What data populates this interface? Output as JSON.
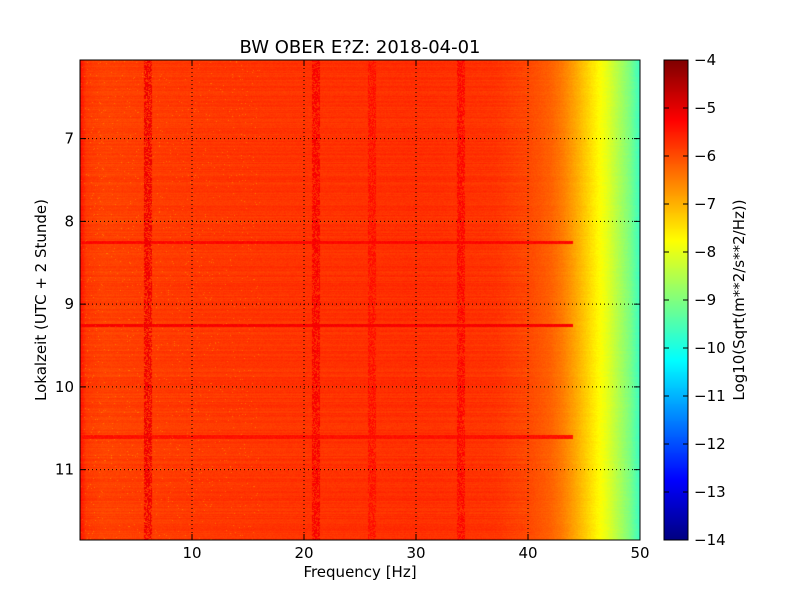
{
  "chart_data": {
    "type": "heatmap",
    "title": "BW OBER E?Z: 2018-04-01",
    "xlabel": "Frequency [Hz]",
    "ylabel": "Lokalzeit (UTC + 2 Stunde)",
    "colorbar_label": "Log10(Sqrt(m**2/s**2/Hz))",
    "xlim": [
      0,
      50
    ],
    "ylim": [
      6.05,
      11.85
    ],
    "y_inverted": true,
    "x_ticks": [
      10,
      20,
      30,
      40,
      50
    ],
    "y_ticks": [
      7,
      8,
      9,
      10,
      11
    ],
    "colorbar_range": [
      -14,
      -4
    ],
    "colorbar_ticks": [
      -4,
      -5,
      -6,
      -7,
      -8,
      -9,
      -10,
      -11,
      -12,
      -13,
      -14
    ],
    "colormap": "jet",
    "grid": true,
    "frequency_profile": {
      "frequency_hz": [
        0,
        0.5,
        2,
        5,
        10,
        20,
        30,
        37,
        40,
        42,
        43,
        44,
        45,
        46,
        47,
        48,
        49,
        50
      ],
      "log10_amplitude": [
        -5.4,
        -5.8,
        -5.9,
        -5.85,
        -5.8,
        -5.75,
        -5.7,
        -5.75,
        -5.95,
        -6.2,
        -6.45,
        -6.8,
        -7.2,
        -7.6,
        -8.0,
        -8.5,
        -9.0,
        -9.7
      ]
    },
    "line_features": [
      {
        "kind": "frequency_line",
        "frequency_hz": 6.0,
        "log10_amplitude": -5.1
      },
      {
        "kind": "frequency_line",
        "frequency_hz": 21.0,
        "log10_amplitude": -5.2
      },
      {
        "kind": "frequency_line",
        "frequency_hz": 26.0,
        "log10_amplitude": -5.4
      },
      {
        "kind": "frequency_line",
        "frequency_hz": 34.0,
        "log10_amplitude": -5.3
      },
      {
        "kind": "time_band",
        "time": 8.25,
        "log10_amplitude": -5.3
      },
      {
        "kind": "time_band",
        "time": 9.25,
        "log10_amplitude": -5.2
      },
      {
        "kind": "time_band",
        "time": 10.6,
        "log10_amplitude": -5.4
      }
    ]
  }
}
